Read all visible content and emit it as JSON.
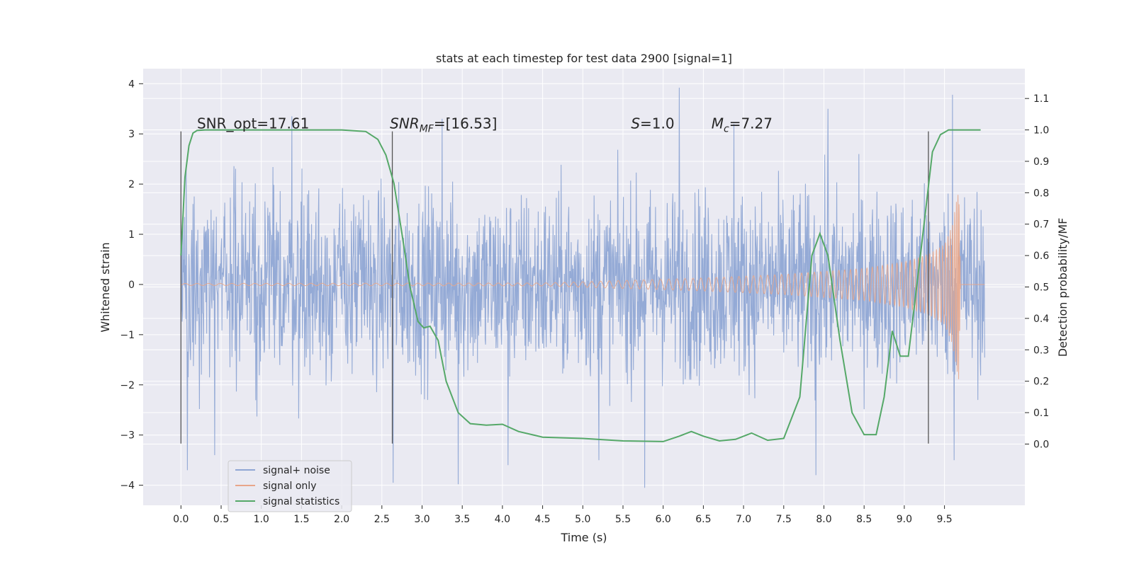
{
  "chart_data": {
    "type": "line",
    "title": "stats at each timestep for test data 2900 [signal=1]",
    "xlabel": "Time (s)",
    "ylabel": "Whitened strain",
    "y2label": "Detection probability/MF",
    "xlim": [
      -0.47,
      10.5
    ],
    "ylim": [
      -4.4,
      4.3
    ],
    "y2lim": [
      -0.195,
      1.195
    ],
    "xticks": [
      0.0,
      0.5,
      1.0,
      1.5,
      2.0,
      2.5,
      3.0,
      3.5,
      4.0,
      4.5,
      5.0,
      5.5,
      6.0,
      6.5,
      7.0,
      7.5,
      8.0,
      8.5,
      9.0,
      9.5
    ],
    "xtick_labels": [
      "0.0",
      "0.5",
      "1.0",
      "1.5",
      "2.0",
      "2.5",
      "3.0",
      "3.5",
      "4.0",
      "4.5",
      "5.0",
      "5.5",
      "6.0",
      "6.5",
      "7.0",
      "7.5",
      "8.0",
      "8.5",
      "9.0",
      "9.5"
    ],
    "yticks": [
      -4,
      -3,
      -2,
      -1,
      0,
      1,
      2,
      3,
      4
    ],
    "ytick_labels": [
      "−4",
      "−3",
      "−2",
      "−1",
      "0",
      "1",
      "2",
      "3",
      "4"
    ],
    "y2ticks": [
      0.0,
      0.1,
      0.2,
      0.3,
      0.4,
      0.5,
      0.6,
      0.7,
      0.8,
      0.9,
      1.0,
      1.1
    ],
    "y2tick_labels": [
      "0.0",
      "0.1",
      "0.2",
      "0.3",
      "0.4",
      "0.5",
      "0.6",
      "0.7",
      "0.8",
      "0.9",
      "1.0",
      "1.1"
    ],
    "grid": true,
    "legend_position": "lower-left",
    "annotations": [
      {
        "text": "SNR_opt=17.61",
        "x": 0.2
      },
      {
        "text": "SNRMF=[16.53]",
        "x": 2.6,
        "main": "SNR",
        "sub": "MF",
        "rest": "=[16.53]"
      },
      {
        "text": "S=1.0",
        "x": 5.6,
        "main": "S",
        "sub": "",
        "rest": "=1.0"
      },
      {
        "text": "Mc=7.27",
        "x": 6.6,
        "main": "M",
        "sub": "c",
        "rest": "=7.27"
      }
    ],
    "annotation_y": 3.05,
    "vlines": [
      0.0,
      2.63,
      9.3
    ],
    "vline_range": [
      -3.17,
      3.05
    ],
    "series": [
      {
        "name": "signal+ noise",
        "color": "#8fa6d4",
        "axis": "left",
        "x_range": [
          0.0,
          10.0
        ],
        "samples": 2000,
        "typical_amplitude": 1.8,
        "extremes": [
          {
            "x": 0.08,
            "y": -3.7
          },
          {
            "x": 0.42,
            "y": -3.4
          },
          {
            "x": 1.38,
            "y": 3.35
          },
          {
            "x": 2.64,
            "y": -3.95
          },
          {
            "x": 3.45,
            "y": -3.98
          },
          {
            "x": 3.25,
            "y": 3.3
          },
          {
            "x": 6.2,
            "y": 3.92
          },
          {
            "x": 5.77,
            "y": -4.05
          },
          {
            "x": 7.9,
            "y": -3.8
          },
          {
            "x": 8.05,
            "y": 3.5
          },
          {
            "x": 9.6,
            "y": 3.78
          },
          {
            "x": 9.62,
            "y": -3.5
          },
          {
            "x": 4.07,
            "y": -3.6
          },
          {
            "x": 5.2,
            "y": -3.5
          },
          {
            "x": 6.88,
            "y": 3.2
          }
        ]
      },
      {
        "name": "signal only",
        "color": "#e8a68a",
        "axis": "left",
        "x_range": [
          0.0,
          10.0
        ],
        "envelope": [
          [
            0.0,
            0.02
          ],
          [
            4.5,
            0.03
          ],
          [
            5.5,
            0.08
          ],
          [
            6.5,
            0.13
          ],
          [
            7.5,
            0.2
          ],
          [
            8.5,
            0.32
          ],
          [
            9.0,
            0.45
          ],
          [
            9.3,
            0.6
          ],
          [
            9.5,
            0.8
          ],
          [
            9.6,
            1.2
          ],
          [
            9.68,
            1.95
          ],
          [
            9.7,
            0.0
          ]
        ]
      },
      {
        "name": "signal statistics",
        "color": "#55a868",
        "axis": "right",
        "x": [
          0.0,
          0.05,
          0.1,
          0.15,
          0.2,
          0.3,
          0.5,
          1.0,
          1.5,
          2.0,
          2.3,
          2.45,
          2.55,
          2.65,
          2.75,
          2.85,
          2.95,
          3.02,
          3.1,
          3.2,
          3.3,
          3.45,
          3.6,
          3.8,
          4.0,
          4.2,
          4.5,
          5.0,
          5.5,
          6.0,
          6.2,
          6.35,
          6.5,
          6.7,
          6.9,
          7.1,
          7.3,
          7.5,
          7.7,
          7.85,
          7.95,
          8.05,
          8.2,
          8.35,
          8.5,
          8.65,
          8.75,
          8.85,
          8.95,
          9.05,
          9.2,
          9.35,
          9.45,
          9.55,
          9.65,
          9.8,
          9.95
        ],
        "y": [
          0.6,
          0.85,
          0.95,
          0.99,
          0.998,
          1.0,
          1.0,
          1.0,
          1.0,
          1.0,
          0.995,
          0.97,
          0.92,
          0.83,
          0.67,
          0.5,
          0.39,
          0.37,
          0.375,
          0.33,
          0.2,
          0.1,
          0.065,
          0.06,
          0.063,
          0.04,
          0.022,
          0.018,
          0.01,
          0.008,
          0.025,
          0.04,
          0.025,
          0.01,
          0.015,
          0.035,
          0.012,
          0.018,
          0.15,
          0.6,
          0.67,
          0.6,
          0.33,
          0.1,
          0.03,
          0.03,
          0.15,
          0.36,
          0.28,
          0.28,
          0.6,
          0.93,
          0.985,
          1.0,
          1.0,
          1.0,
          1.0
        ]
      }
    ]
  }
}
